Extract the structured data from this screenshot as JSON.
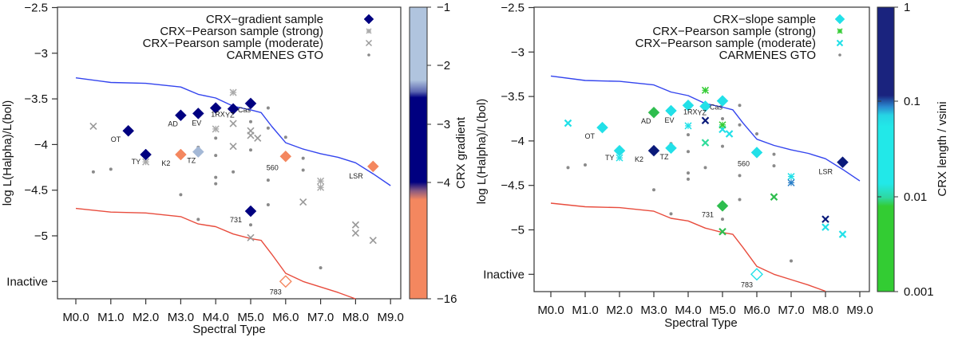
{
  "chart_data": [
    {
      "type": "scatter",
      "panel": "left",
      "xlabel": "Spectral Type",
      "ylabel": "log L(Halpha)/L(bol)",
      "x_ticks": [
        "M0.0",
        "M1.0",
        "M2.0",
        "M3.0",
        "M4.0",
        "M5.0",
        "M6.0",
        "M7.0",
        "M8.0",
        "M9.0"
      ],
      "y_ticks": [
        {
          "v": -2.5,
          "label": "−2.5"
        },
        {
          "v": -3,
          "label": "−3"
        },
        {
          "v": -3.5,
          "label": "−3.5"
        },
        {
          "v": -4,
          "label": "−4"
        },
        {
          "v": -4.5,
          "label": "−4.5"
        },
        {
          "v": -5,
          "label": "−5"
        },
        {
          "v": -5.5,
          "label": "Inactive"
        }
      ],
      "xlim": [
        -0.5,
        9.3
      ],
      "ylim": [
        -5.7,
        -2.5
      ],
      "legend": {
        "placement": "top-right",
        "entries": [
          {
            "label": "CRX−gradient sample",
            "marker": "diamond",
            "color": "#000080"
          },
          {
            "label": "CRX−Pearson sample (strong)",
            "marker": "star",
            "color": "#aaaaaa"
          },
          {
            "label": "CRX−Pearson sample (moderate)",
            "marker": "x",
            "color": "#999999"
          },
          {
            "label": "CARMENES GTO",
            "marker": "dot",
            "color": "#888888"
          }
        ]
      },
      "colorbar": {
        "title": "CRX gradient",
        "ticks": [
          "−1",
          "−2",
          "−3",
          "−4",
          "−16"
        ],
        "colors": {
          "high": "#b0c4de",
          "mid": "#000080",
          "low": "#f4875f"
        }
      },
      "lines": [
        {
          "name": "upper-boundary",
          "color": "#3344ee",
          "x": [
            0,
            1,
            2,
            3,
            3.5,
            4,
            4.5,
            5,
            5.3,
            5.6,
            6,
            6.5,
            7,
            7.5,
            8,
            8.5,
            9
          ],
          "y": [
            -3.27,
            -3.32,
            -3.33,
            -3.37,
            -3.45,
            -3.49,
            -3.58,
            -3.62,
            -3.65,
            -3.8,
            -3.98,
            -4.05,
            -4.1,
            -4.14,
            -4.2,
            -4.32,
            -4.45
          ]
        },
        {
          "name": "lower-boundary",
          "color": "#e84c3d",
          "x": [
            0,
            1,
            2,
            3,
            3.5,
            4,
            4.5,
            5,
            5.3,
            5.6,
            6,
            6.5,
            7,
            7.5,
            8
          ],
          "y": [
            -4.7,
            -4.74,
            -4.75,
            -4.79,
            -4.87,
            -4.9,
            -4.98,
            -5.03,
            -5.05,
            -5.2,
            -5.41,
            -5.5,
            -5.56,
            -5.62,
            -5.69
          ]
        }
      ],
      "gradient_points": [
        {
          "x": 1.5,
          "y": -3.85,
          "color": "#000080",
          "label": "OT"
        },
        {
          "x": 2.0,
          "y": -4.11,
          "color": "#000080",
          "label": "TY"
        },
        {
          "x": 3.0,
          "y": -3.68,
          "color": "#000080",
          "label": "AD"
        },
        {
          "x": 3.5,
          "y": -3.66,
          "color": "#000080",
          "label": "EV"
        },
        {
          "x": 4.0,
          "y": -3.6,
          "color": "#000080",
          "label": "1RX"
        },
        {
          "x": 4.5,
          "y": -3.61,
          "color": "#000080",
          "label": "YZ"
        },
        {
          "x": 5.0,
          "y": -3.55,
          "color": "#000080",
          "label": "Cas"
        },
        {
          "x": 3.0,
          "y": -4.11,
          "color": "#f4875f",
          "label": "K2"
        },
        {
          "x": 3.5,
          "y": -4.08,
          "color": "#a4b8d6",
          "label": "TZ"
        },
        {
          "x": 6.0,
          "y": -4.13,
          "color": "#f4875f",
          "label": "560"
        },
        {
          "x": 8.5,
          "y": -4.24,
          "color": "#f4875f",
          "label": "LSR"
        },
        {
          "x": 5.0,
          "y": -4.73,
          "color": "#000080",
          "label": "731"
        },
        {
          "x": 6.0,
          "y": -5.5,
          "color": "#f4875f",
          "label": "783",
          "open": true
        }
      ],
      "strong_points": [
        {
          "x": 2.0,
          "y": -4.19
        },
        {
          "x": 4.0,
          "y": -3.83
        },
        {
          "x": 4.5,
          "y": -3.43
        },
        {
          "x": 7.0,
          "y": -4.4
        },
        {
          "x": 7.0,
          "y": -4.47
        }
      ],
      "moderate_points": [
        {
          "x": 0.5,
          "y": -3.8
        },
        {
          "x": 4.5,
          "y": -3.77
        },
        {
          "x": 4.5,
          "y": -4.02
        },
        {
          "x": 5.0,
          "y": -3.85
        },
        {
          "x": 5.0,
          "y": -3.9
        },
        {
          "x": 5.2,
          "y": -3.93
        },
        {
          "x": 6.5,
          "y": -4.63
        },
        {
          "x": 8.0,
          "y": -4.88
        },
        {
          "x": 8.0,
          "y": -4.97
        },
        {
          "x": 8.5,
          "y": -5.05
        },
        {
          "x": 5.0,
          "y": -5.02
        }
      ],
      "gto_points": [
        {
          "x": 0.5,
          "y": -4.3
        },
        {
          "x": 1.0,
          "y": -4.27
        },
        {
          "x": 3.0,
          "y": -4.55
        },
        {
          "x": 3.5,
          "y": -4.82
        },
        {
          "x": 3.5,
          "y": -4.03
        },
        {
          "x": 4.0,
          "y": -3.93
        },
        {
          "x": 4.0,
          "y": -4.12
        },
        {
          "x": 4.0,
          "y": -4.36
        },
        {
          "x": 4.0,
          "y": -4.43
        },
        {
          "x": 4.5,
          "y": -4.3
        },
        {
          "x": 5.0,
          "y": -3.75
        },
        {
          "x": 5.0,
          "y": -4.06
        },
        {
          "x": 5.0,
          "y": -4.88
        },
        {
          "x": 5.5,
          "y": -3.6
        },
        {
          "x": 5.5,
          "y": -3.82
        },
        {
          "x": 5.5,
          "y": -4.39
        },
        {
          "x": 5.5,
          "y": -4.66
        },
        {
          "x": 6.0,
          "y": -3.92
        },
        {
          "x": 6.5,
          "y": -4.15
        },
        {
          "x": 6.5,
          "y": -4.28
        },
        {
          "x": 7.0,
          "y": -5.35
        }
      ]
    },
    {
      "type": "scatter",
      "panel": "right",
      "xlabel": "Spectral Type",
      "ylabel": "log L(Halpha)/L(bol)",
      "x_ticks": [
        "M0.0",
        "M1.0",
        "M2.0",
        "M3.0",
        "M4.0",
        "M5.0",
        "M6.0",
        "M7.0",
        "M8.0",
        "M9.0"
      ],
      "y_ticks": [
        {
          "v": -2.5,
          "label": "−2.5"
        },
        {
          "v": -3,
          "label": "−3"
        },
        {
          "v": -3.5,
          "label": "−3.5"
        },
        {
          "v": -4,
          "label": "−4"
        },
        {
          "v": -4.5,
          "label": "−4.5"
        },
        {
          "v": -5,
          "label": "−5"
        },
        {
          "v": -5.5,
          "label": "Inactive"
        }
      ],
      "xlim": [
        -0.5,
        9.3
      ],
      "ylim": [
        -5.7,
        -2.5
      ],
      "legend": {
        "placement": "top-right",
        "entries": [
          {
            "label": "CRX−slope sample",
            "marker": "diamond",
            "color": "#22e0e8"
          },
          {
            "label": "CRX−Pearson sample (strong)",
            "marker": "star",
            "color": "#33cc33"
          },
          {
            "label": "CRX−Pearson sample (moderate)",
            "marker": "x",
            "color": "#22e0e8"
          },
          {
            "label": "CARMENES GTO",
            "marker": "dot",
            "color": "#888888"
          }
        ]
      },
      "colorbar": {
        "title": "CRX length / vsini",
        "ticks": [
          "1",
          "0.1",
          "0.01",
          "0.001"
        ],
        "scale": "log",
        "colors": {
          "high": "#1a237e",
          "mid": "#22e8e8",
          "low": "#33cc33"
        }
      },
      "lines": [
        {
          "name": "upper-boundary",
          "color": "#3344ee",
          "x": [
            0,
            1,
            2,
            3,
            3.5,
            4,
            4.5,
            5,
            5.3,
            5.6,
            6,
            6.5,
            7,
            7.5,
            8,
            8.5,
            9
          ],
          "y": [
            -3.27,
            -3.32,
            -3.33,
            -3.37,
            -3.45,
            -3.49,
            -3.58,
            -3.62,
            -3.65,
            -3.8,
            -3.98,
            -4.05,
            -4.1,
            -4.14,
            -4.2,
            -4.32,
            -4.45
          ]
        },
        {
          "name": "lower-boundary",
          "color": "#e84c3d",
          "x": [
            0,
            1,
            2,
            3,
            3.5,
            4,
            4.5,
            5,
            5.3,
            5.6,
            6,
            6.5,
            7,
            7.5,
            8
          ],
          "y": [
            -4.7,
            -4.74,
            -4.75,
            -4.79,
            -4.87,
            -4.9,
            -4.98,
            -5.03,
            -5.05,
            -5.2,
            -5.41,
            -5.5,
            -5.56,
            -5.62,
            -5.69
          ]
        }
      ],
      "slope_points": [
        {
          "x": 1.5,
          "y": -3.85,
          "color": "#22e0e8",
          "label": "OT"
        },
        {
          "x": 2.0,
          "y": -4.11,
          "color": "#22e0e8",
          "label": "TY"
        },
        {
          "x": 3.0,
          "y": -3.68,
          "color": "#2ebd4e",
          "label": "AD"
        },
        {
          "x": 3.5,
          "y": -3.66,
          "color": "#22e0e8",
          "label": "EV"
        },
        {
          "x": 4.0,
          "y": -3.6,
          "color": "#22e0e8",
          "label": "1RX"
        },
        {
          "x": 4.5,
          "y": -3.61,
          "color": "#22e0e8",
          "label": "YZ"
        },
        {
          "x": 5.0,
          "y": -3.55,
          "color": "#22e0e8",
          "label": "Cas"
        },
        {
          "x": 3.0,
          "y": -4.11,
          "color": "#0a1a7a",
          "label": "K2"
        },
        {
          "x": 3.5,
          "y": -4.08,
          "color": "#22e0e8",
          "label": "TZ"
        },
        {
          "x": 6.0,
          "y": -4.13,
          "color": "#22e0e8",
          "label": "560"
        },
        {
          "x": 8.5,
          "y": -4.24,
          "color": "#0a1a7a",
          "label": "LSR"
        },
        {
          "x": 5.0,
          "y": -4.73,
          "color": "#2ebd4e",
          "label": "731"
        },
        {
          "x": 6.0,
          "y": -5.5,
          "color": "#22e0e8",
          "label": "783",
          "open": true
        }
      ],
      "strong_points": [
        {
          "x": 2.0,
          "y": -4.19,
          "color": "#22e0e8"
        },
        {
          "x": 4.0,
          "y": -3.83,
          "color": "#22e0e8"
        },
        {
          "x": 4.5,
          "y": -3.43,
          "color": "#33cc33"
        },
        {
          "x": 7.0,
          "y": -4.4,
          "color": "#22e0e8"
        },
        {
          "x": 7.0,
          "y": -4.47,
          "color": "#2a7fc8"
        },
        {
          "x": 5.0,
          "y": -3.82,
          "color": "#33cc33"
        }
      ],
      "moderate_points": [
        {
          "x": 0.5,
          "y": -3.8,
          "color": "#22e0e8"
        },
        {
          "x": 4.5,
          "y": -3.77,
          "color": "#0a1a7a"
        },
        {
          "x": 4.5,
          "y": -4.02,
          "color": "#2edc9a"
        },
        {
          "x": 5.0,
          "y": -3.87,
          "color": "#22e0e8"
        },
        {
          "x": 5.2,
          "y": -3.92,
          "color": "#22e0e8"
        },
        {
          "x": 6.5,
          "y": -4.63,
          "color": "#2ebd4e"
        },
        {
          "x": 8.0,
          "y": -4.88,
          "color": "#0a1a7a"
        },
        {
          "x": 8.0,
          "y": -4.97,
          "color": "#22e0e8"
        },
        {
          "x": 8.5,
          "y": -5.05,
          "color": "#22e0e8"
        },
        {
          "x": 5.0,
          "y": -5.02,
          "color": "#2ebd4e"
        }
      ],
      "gto_points": [
        {
          "x": 0.5,
          "y": -4.3
        },
        {
          "x": 1.0,
          "y": -4.27
        },
        {
          "x": 3.0,
          "y": -4.55
        },
        {
          "x": 3.5,
          "y": -4.82
        },
        {
          "x": 3.5,
          "y": -4.03
        },
        {
          "x": 4.0,
          "y": -3.93
        },
        {
          "x": 4.0,
          "y": -4.12
        },
        {
          "x": 4.0,
          "y": -4.36
        },
        {
          "x": 4.0,
          "y": -4.43
        },
        {
          "x": 4.5,
          "y": -4.3
        },
        {
          "x": 5.0,
          "y": -3.75
        },
        {
          "x": 5.0,
          "y": -4.06
        },
        {
          "x": 5.0,
          "y": -4.88
        },
        {
          "x": 5.5,
          "y": -3.6
        },
        {
          "x": 5.5,
          "y": -3.82
        },
        {
          "x": 5.5,
          "y": -4.39
        },
        {
          "x": 5.5,
          "y": -4.66
        },
        {
          "x": 6.0,
          "y": -3.92
        },
        {
          "x": 6.5,
          "y": -4.15
        },
        {
          "x": 6.5,
          "y": -4.28
        },
        {
          "x": 7.0,
          "y": -5.35
        }
      ]
    }
  ]
}
